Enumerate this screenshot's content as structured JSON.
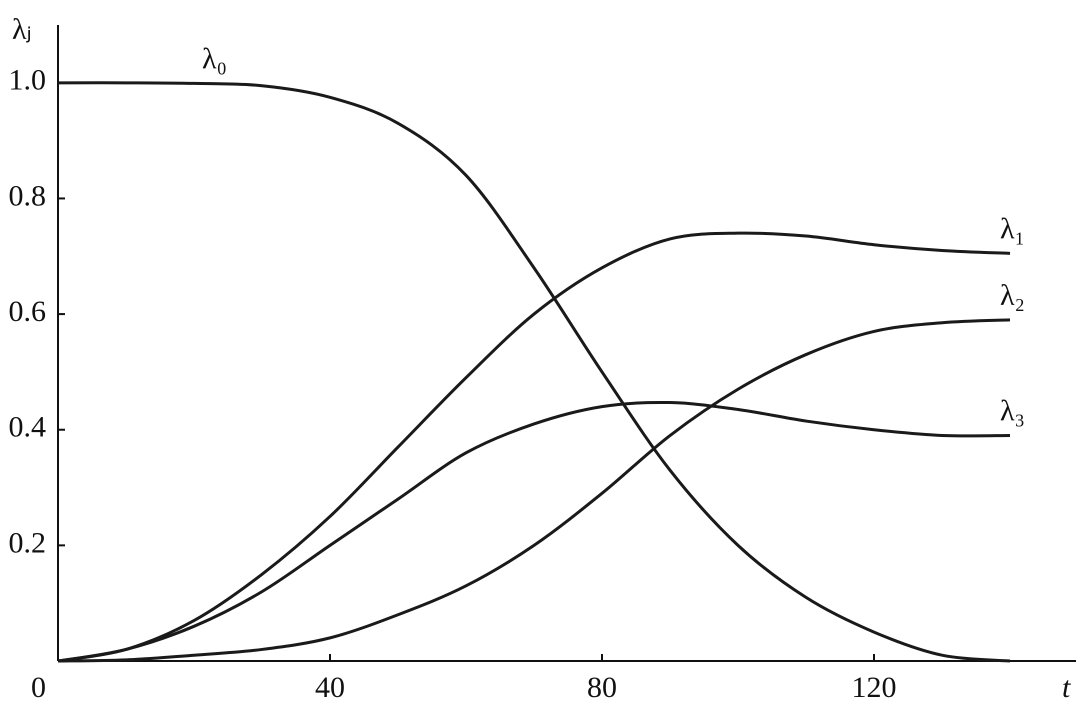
{
  "chart_data": {
    "type": "line",
    "x_label": "t",
    "y_label": "λⱼ",
    "x": [
      0,
      10,
      20,
      30,
      40,
      50,
      60,
      70,
      80,
      90,
      100,
      110,
      120,
      130,
      140
    ],
    "series": [
      {
        "name": "λ₀",
        "color": "#1a1a1a",
        "values": [
          1.0,
          1.0,
          0.999,
          0.995,
          0.975,
          0.93,
          0.84,
          0.68,
          0.5,
          0.33,
          0.2,
          0.11,
          0.05,
          0.01,
          0.0
        ]
      },
      {
        "name": "λ₁",
        "color": "#1a1a1a",
        "values": [
          0.0,
          0.02,
          0.07,
          0.15,
          0.25,
          0.37,
          0.49,
          0.6,
          0.68,
          0.73,
          0.74,
          0.735,
          0.72,
          0.71,
          0.705
        ]
      },
      {
        "name": "λ₂",
        "color": "#1a1a1a",
        "values": [
          0.0,
          0.002,
          0.01,
          0.02,
          0.04,
          0.08,
          0.13,
          0.2,
          0.29,
          0.39,
          0.47,
          0.53,
          0.57,
          0.585,
          0.59
        ]
      },
      {
        "name": "λ₃",
        "color": "#1a1a1a",
        "values": [
          0.0,
          0.02,
          0.06,
          0.12,
          0.2,
          0.28,
          0.36,
          0.41,
          0.44,
          0.447,
          0.435,
          0.415,
          0.4,
          0.39,
          0.39
        ]
      }
    ],
    "xlim": [
      0,
      150
    ],
    "ylim": [
      0,
      1.1
    ],
    "xticks": [
      0,
      40,
      80,
      120
    ],
    "yticks": [
      0.2,
      0.4,
      0.6,
      0.8,
      {
        "value": 1,
        "label": "1.0"
      }
    ],
    "grid": false
  }
}
